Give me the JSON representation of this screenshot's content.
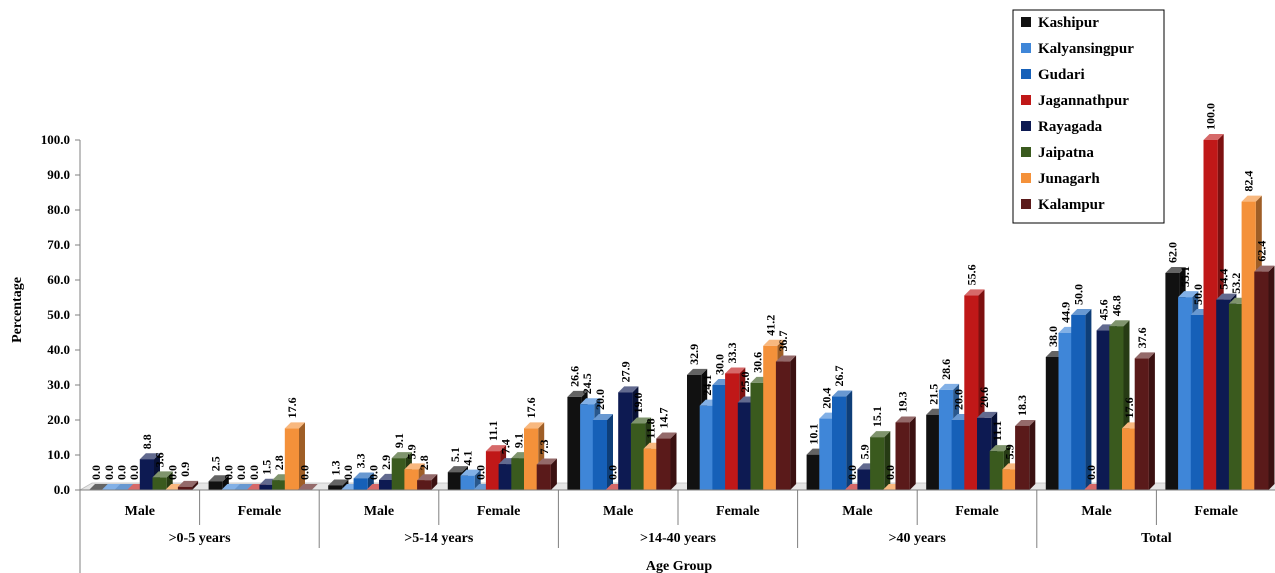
{
  "chart_data": {
    "type": "bar",
    "xlabel": "Age Group",
    "ylabel": "Percentage",
    "ylim": [
      0,
      100
    ],
    "y_ticks": [
      "0.0",
      "10.0",
      "20.0",
      "30.0",
      "40.0",
      "50.0",
      "60.0",
      "70.0",
      "80.0",
      "90.0",
      "100.0"
    ],
    "legend_position": "top-right",
    "groups": [
      ">0-5 years",
      ">5-14 years",
      ">14-40 years",
      ">40 years",
      "Total"
    ],
    "categories": [
      "Male",
      "Female",
      "Male",
      "Female",
      "Male",
      "Female",
      "Male",
      "Female",
      "Male",
      "Female"
    ],
    "series": [
      {
        "name": "Kashipur",
        "color": "#111111",
        "values": [
          0.0,
          2.5,
          1.3,
          5.1,
          26.6,
          32.9,
          10.1,
          21.5,
          38.0,
          62.0
        ]
      },
      {
        "name": "Kalyansingpur",
        "color": "#3f86d8",
        "values": [
          0.0,
          0.0,
          0.0,
          4.1,
          24.5,
          24.1,
          20.4,
          28.6,
          44.9,
          55.1
        ]
      },
      {
        "name": "Gudari",
        "color": "#1660b8",
        "values": [
          0.0,
          0.0,
          3.3,
          0.0,
          20.0,
          30.0,
          26.7,
          20.0,
          50.0,
          50.0
        ]
      },
      {
        "name": "Jagannathpur",
        "color": "#c01818",
        "values": [
          0.0,
          0.0,
          0.0,
          11.1,
          0.0,
          33.3,
          0.0,
          55.6,
          0.0,
          100.0
        ]
      },
      {
        "name": "Rayagada",
        "color": "#0d1a52",
        "values": [
          8.8,
          1.5,
          2.9,
          7.4,
          27.9,
          25.0,
          5.9,
          20.6,
          45.6,
          54.4
        ]
      },
      {
        "name": "Jaipatna",
        "color": "#3a5a1e",
        "values": [
          3.6,
          2.8,
          9.1,
          9.1,
          19.0,
          30.6,
          15.1,
          11.1,
          46.8,
          53.2
        ]
      },
      {
        "name": "Junagarh",
        "color": "#f4913a",
        "values": [
          0.0,
          17.6,
          5.9,
          17.6,
          11.8,
          41.2,
          0.0,
          5.9,
          17.6,
          82.4
        ]
      },
      {
        "name": "Kalampur",
        "color": "#5a1a1a",
        "values": [
          0.9,
          0.0,
          2.8,
          7.3,
          14.7,
          36.7,
          19.3,
          18.3,
          37.6,
          62.4
        ]
      }
    ],
    "value_labels": [
      [
        "0.0",
        "2.5",
        "1.3",
        "5.1",
        "26.6",
        "32.9",
        "10.1",
        "21.5",
        "38.0",
        "62.0"
      ],
      [
        "0.0",
        "0.0",
        "0.0",
        "4.1",
        "24.5",
        "24.1",
        "20.4",
        "28.6",
        "44.9",
        "55.1"
      ],
      [
        "0.0",
        "0.0",
        "3.3",
        "0.0",
        "20.0",
        "30.0",
        "26.7",
        "20.0",
        "50.0",
        "50.0"
      ],
      [
        "0.0",
        "0.0",
        "0.0",
        "11.1",
        "0.0",
        "33.3",
        "0.0",
        "55.6",
        "0.0",
        "100.0"
      ],
      [
        "8.8",
        "1.5",
        "2.9",
        "7.4",
        "27.9",
        "25.0",
        "5.9",
        "20.6",
        "45.6",
        "54.4"
      ],
      [
        "3.6",
        "2.8",
        "9.1",
        "9.1",
        "19.0",
        "30.6",
        "15.1",
        "11.1",
        "46.8",
        "53.2"
      ],
      [
        "0.0",
        "17.6",
        "5.9",
        "17.6",
        "11.8",
        "41.2",
        "0.0",
        "5.9",
        "17.6",
        "82.4"
      ],
      [
        "0.9",
        "0.0",
        "2.8",
        "7.3",
        "14.7",
        "36.7",
        "19.3",
        "18.3",
        "37.6",
        "62.4"
      ]
    ]
  }
}
